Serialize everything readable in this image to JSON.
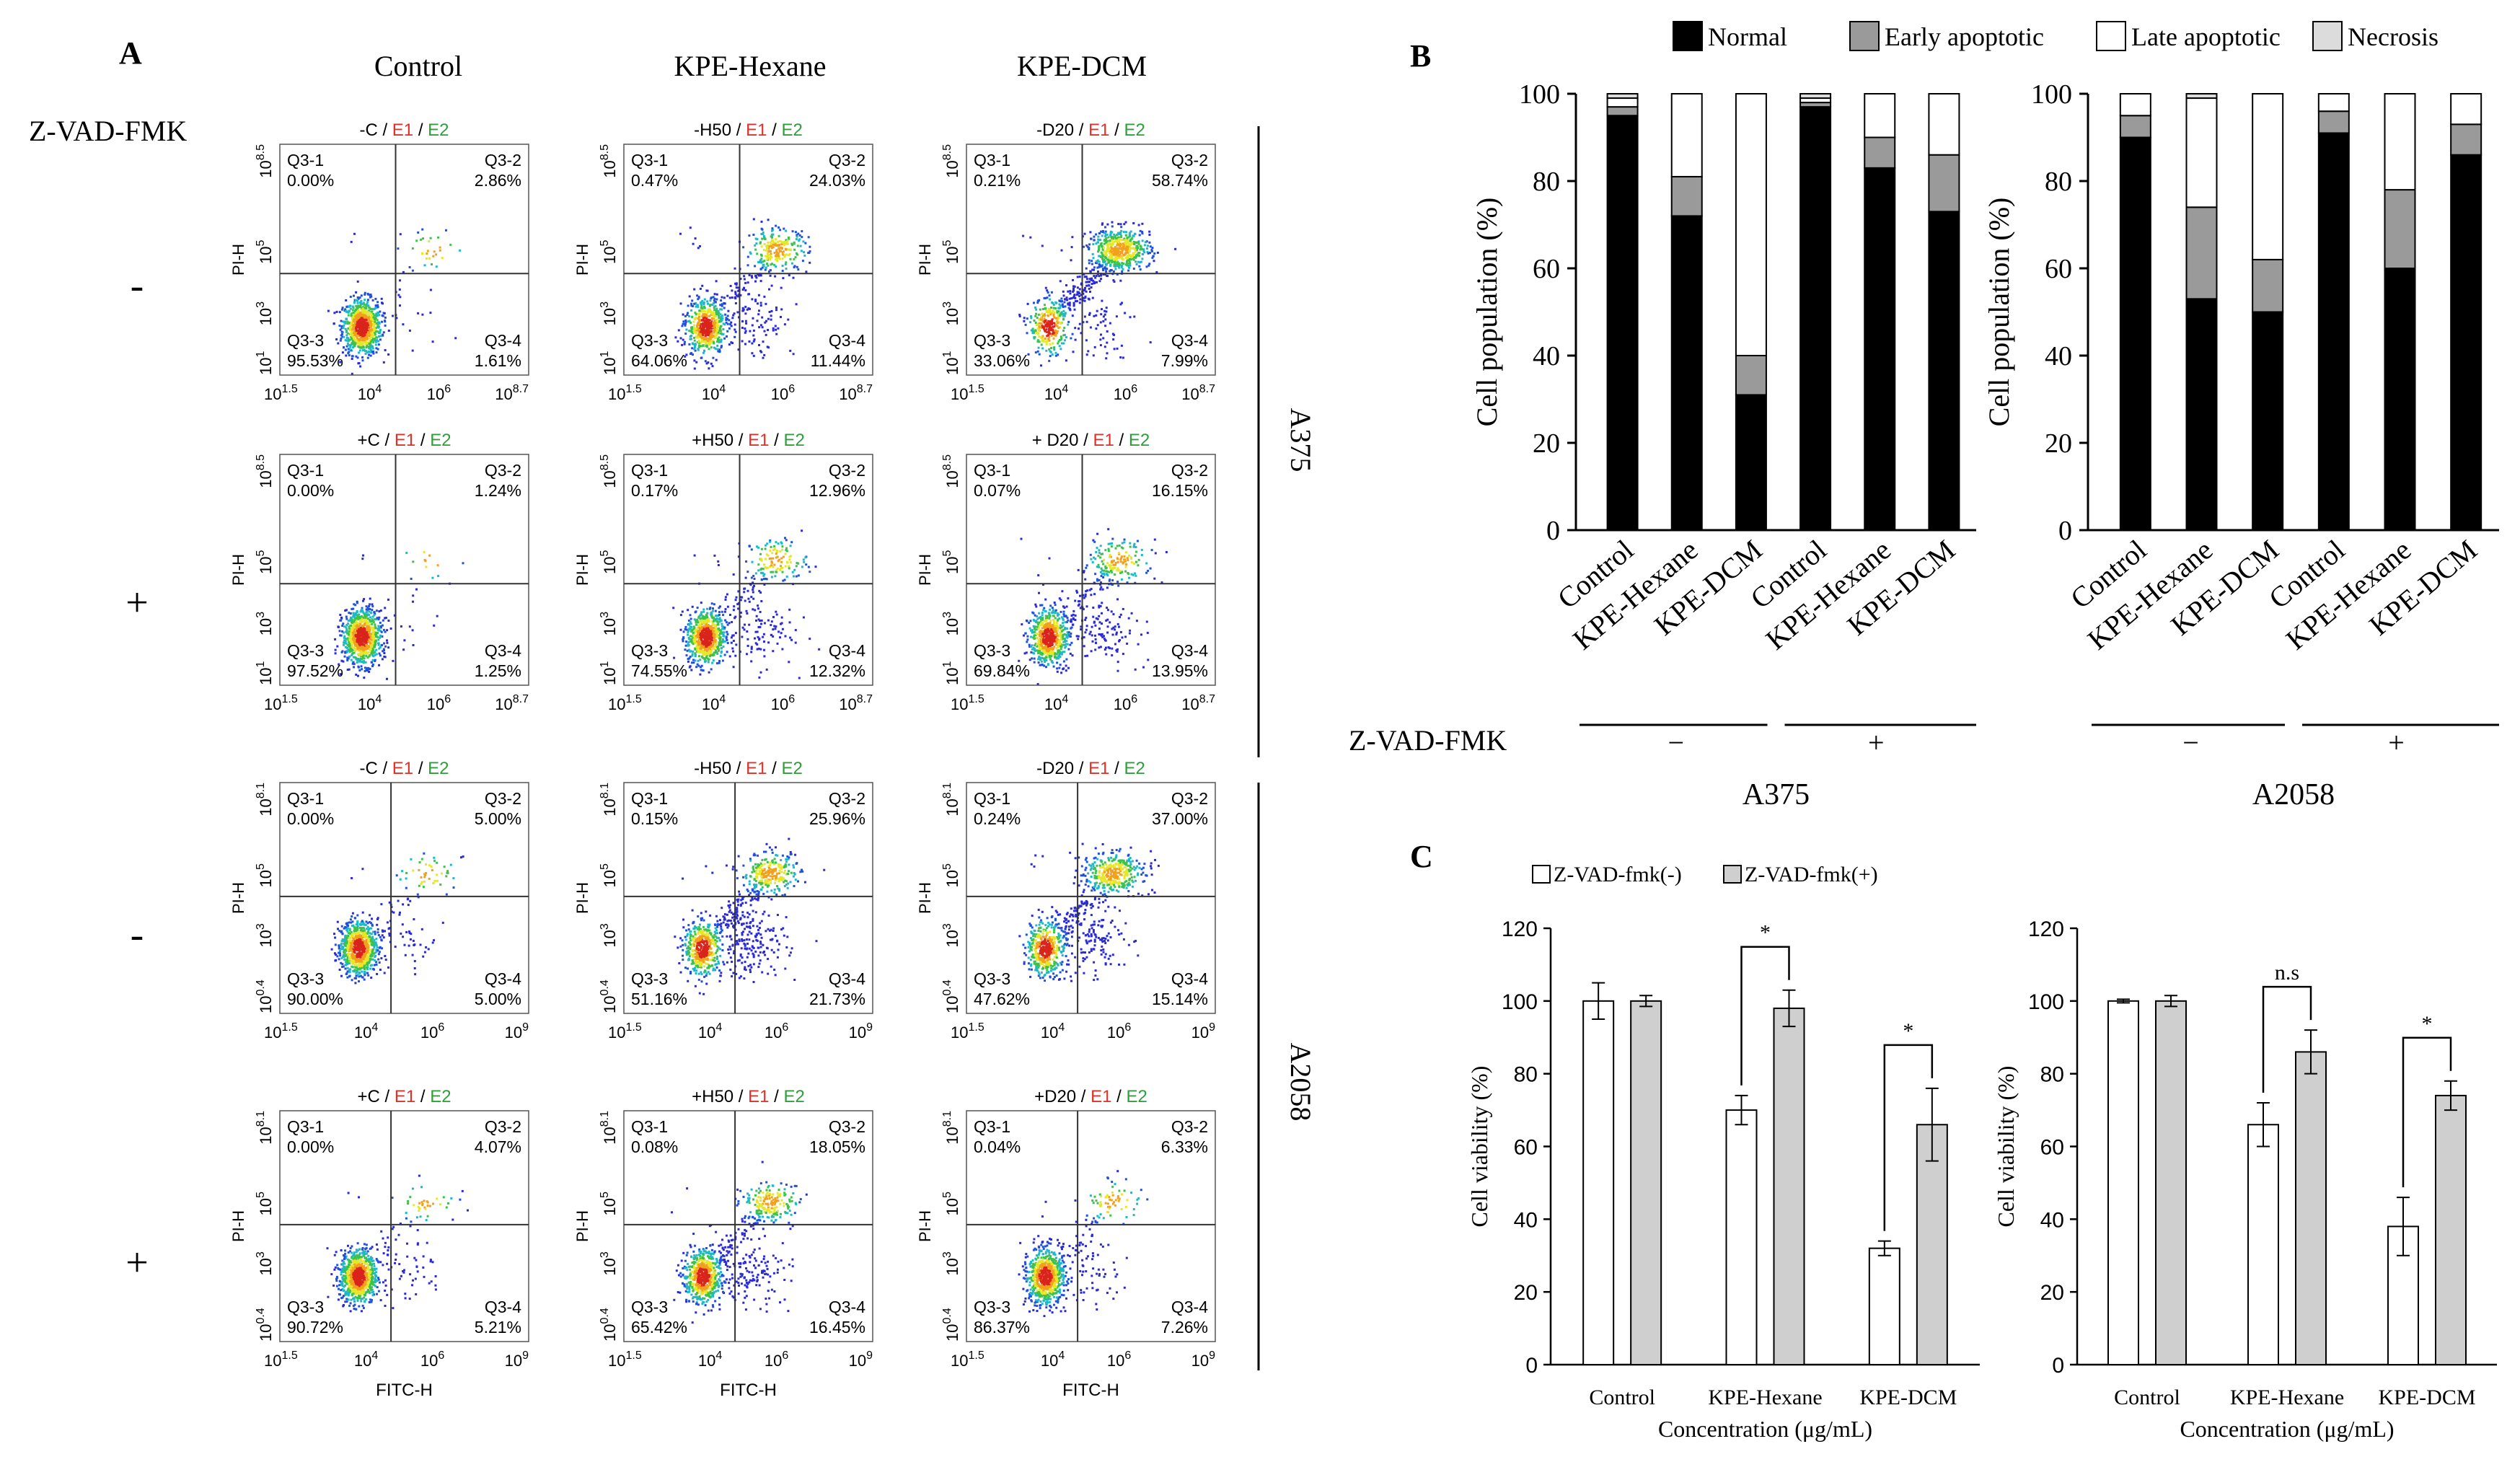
{
  "figure": {
    "panel_labels": {
      "a": "A",
      "b": "B",
      "c": "C"
    }
  },
  "panel_a": {
    "column_headers": [
      "Control",
      "KPE-Hexane",
      "KPE-DCM"
    ],
    "row_header": "Z-VAD-FMK",
    "row_signs": [
      "-",
      "+",
      "-",
      "+"
    ],
    "cell_lines": [
      "A375",
      "A2058"
    ],
    "x_axis_label": "FITC-H",
    "y_axis_label": "PI-H",
    "tag_colors": {
      "e1": "#e0302a",
      "e2": "#2f9e3a"
    },
    "plots": [
      [
        {
          "tag_prefix": "-C",
          "e1": "E1",
          "e2": "E2",
          "q1": "Q3-1",
          "q1v": "0.00%",
          "q2": "Q3-2",
          "q2v": "2.86%",
          "q3": "Q3-3",
          "q3v": "95.53%",
          "q4": "Q3-4",
          "q4v": "1.61%",
          "x_ticks": [
            "10^1.5",
            "10^4",
            "10^6",
            "10^8.7"
          ],
          "y_ticks": [
            "10^8.5",
            "10^5",
            "10^3",
            "10^1"
          ],
          "x_max_exp": 8.7,
          "y_max_exp": 8.5,
          "y_min_exp": 1.0
        },
        {
          "tag_prefix": "-H50",
          "e1": "E1",
          "e2": "E2",
          "q1": "Q3-1",
          "q1v": "0.47%",
          "q2": "Q3-2",
          "q2v": "24.03%",
          "q3": "Q3-3",
          "q3v": "64.06%",
          "q4": "Q3-4",
          "q4v": "11.44%",
          "x_ticks": [
            "10^1.5",
            "10^4",
            "10^6",
            "10^8.7"
          ],
          "y_ticks": [
            "10^8.5",
            "10^5",
            "10^3",
            "10^1"
          ],
          "x_max_exp": 8.7,
          "y_max_exp": 8.5,
          "y_min_exp": 1.0
        },
        {
          "tag_prefix": "-D20",
          "e1": "E1",
          "e2": "E2",
          "q1": "Q3-1",
          "q1v": "0.21%",
          "q2": "Q3-2",
          "q2v": "58.74%",
          "q3": "Q3-3",
          "q3v": "33.06%",
          "q4": "Q3-4",
          "q4v": "7.99%",
          "x_ticks": [
            "10^1.5",
            "10^4",
            "10^6",
            "10^8.7"
          ],
          "y_ticks": [
            "10^8.5",
            "10^5",
            "10^3",
            "10^1"
          ],
          "x_max_exp": 8.7,
          "y_max_exp": 8.5,
          "y_min_exp": 1.0
        }
      ],
      [
        {
          "tag_prefix": "+C",
          "e1": "E1",
          "e2": "E2",
          "q1": "Q3-1",
          "q1v": "0.00%",
          "q2": "Q3-2",
          "q2v": "1.24%",
          "q3": "Q3-3",
          "q3v": "97.52%",
          "q4": "Q3-4",
          "q4v": "1.25%",
          "x_ticks": [
            "10^1.5",
            "10^4",
            "10^6",
            "10^8.7"
          ],
          "y_ticks": [
            "10^8.5",
            "10^5",
            "10^3",
            "10^1"
          ],
          "x_max_exp": 8.7,
          "y_max_exp": 8.5,
          "y_min_exp": 1.0
        },
        {
          "tag_prefix": "+H50",
          "e1": "E1",
          "e2": "E2",
          "q1": "Q3-1",
          "q1v": "0.17%",
          "q2": "Q3-2",
          "q2v": "12.96%",
          "q3": "Q3-3",
          "q3v": "74.55%",
          "q4": "Q3-4",
          "q4v": "12.32%",
          "x_ticks": [
            "10^1.5",
            "10^4",
            "10^6",
            "10^8.7"
          ],
          "y_ticks": [
            "10^8.5",
            "10^5",
            "10^3",
            "10^1"
          ],
          "x_max_exp": 8.7,
          "y_max_exp": 8.5,
          "y_min_exp": 1.0
        },
        {
          "tag_prefix": "+ D20",
          "e1": "E1",
          "e2": "E2",
          "q1": "Q3-1",
          "q1v": "0.07%",
          "q2": "Q3-2",
          "q2v": "16.15%",
          "q3": "Q3-3",
          "q3v": "69.84%",
          "q4": "Q3-4",
          "q4v": "13.95%",
          "x_ticks": [
            "10^1.5",
            "10^4",
            "10^6",
            "10^8.7"
          ],
          "y_ticks": [
            "10^8.5",
            "10^5",
            "10^3",
            "10^1"
          ],
          "x_max_exp": 8.7,
          "y_max_exp": 8.5,
          "y_min_exp": 1.0
        }
      ],
      [
        {
          "tag_prefix": "-C",
          "e1": "E1",
          "e2": "E2",
          "q1": "Q3-1",
          "q1v": "0.00%",
          "q2": "Q3-2",
          "q2v": "5.00%",
          "q3": "Q3-3",
          "q3v": "90.00%",
          "q4": "Q3-4",
          "q4v": "5.00%",
          "x_ticks": [
            "10^1.5",
            "10^4",
            "10^6",
            "10^9"
          ],
          "y_ticks": [
            "10^8.1",
            "10^5",
            "10^3",
            "10^0.4"
          ],
          "x_max_exp": 9.0,
          "y_max_exp": 8.1,
          "y_min_exp": 0.4
        },
        {
          "tag_prefix": "-H50",
          "e1": "E1",
          "e2": "E2",
          "q1": "Q3-1",
          "q1v": "0.15%",
          "q2": "Q3-2",
          "q2v": "25.96%",
          "q3": "Q3-3",
          "q3v": "51.16%",
          "q4": "Q3-4",
          "q4v": "21.73%",
          "x_ticks": [
            "10^1.5",
            "10^4",
            "10^6",
            "10^9"
          ],
          "y_ticks": [
            "10^8.1",
            "10^5",
            "10^3",
            "10^0.4"
          ],
          "x_max_exp": 9.0,
          "y_max_exp": 8.1,
          "y_min_exp": 0.4
        },
        {
          "tag_prefix": "-D20",
          "e1": "E1",
          "e2": "E2",
          "q1": "Q3-1",
          "q1v": "0.24%",
          "q2": "Q3-2",
          "q2v": "37.00%",
          "q3": "Q3-3",
          "q3v": "47.62%",
          "q4": "Q3-4",
          "q4v": "15.14%",
          "x_ticks": [
            "10^1.5",
            "10^4",
            "10^6",
            "10^9"
          ],
          "y_ticks": [
            "10^8.1",
            "10^5",
            "10^3",
            "10^0.4"
          ],
          "x_max_exp": 9.0,
          "y_max_exp": 8.1,
          "y_min_exp": 0.4
        }
      ],
      [
        {
          "tag_prefix": "+C",
          "e1": "E1",
          "e2": "E2",
          "q1": "Q3-1",
          "q1v": "0.00%",
          "q2": "Q3-2",
          "q2v": "4.07%",
          "q3": "Q3-3",
          "q3v": "90.72%",
          "q4": "Q3-4",
          "q4v": "5.21%",
          "x_ticks": [
            "10^1.5",
            "10^4",
            "10^6",
            "10^9"
          ],
          "y_ticks": [
            "10^8.1",
            "10^5",
            "10^3",
            "10^0.4"
          ],
          "x_max_exp": 9.0,
          "y_max_exp": 8.1,
          "y_min_exp": 0.4
        },
        {
          "tag_prefix": "+H50",
          "e1": "E1",
          "e2": "E2",
          "q1": "Q3-1",
          "q1v": "0.08%",
          "q2": "Q3-2",
          "q2v": "18.05%",
          "q3": "Q3-3",
          "q3v": "65.42%",
          "q4": "Q3-4",
          "q4v": "16.45%",
          "x_ticks": [
            "10^1.5",
            "10^4",
            "10^6",
            "10^9"
          ],
          "y_ticks": [
            "10^8.1",
            "10^5",
            "10^3",
            "10^0.4"
          ],
          "x_max_exp": 9.0,
          "y_max_exp": 8.1,
          "y_min_exp": 0.4
        },
        {
          "tag_prefix": "+D20",
          "e1": "E1",
          "e2": "E2",
          "q1": "Q3-1",
          "q1v": "0.04%",
          "q2": "Q3-2",
          "q2v": "6.33%",
          "q3": "Q3-3",
          "q3v": "86.37%",
          "q4": "Q3-4",
          "q4v": "7.26%",
          "x_ticks": [
            "10^1.5",
            "10^4",
            "10^6",
            "10^9"
          ],
          "y_ticks": [
            "10^8.1",
            "10^5",
            "10^3",
            "10^0.4"
          ],
          "x_max_exp": 9.0,
          "y_max_exp": 8.1,
          "y_min_exp": 0.4
        }
      ]
    ]
  },
  "panel_b": {
    "legend": [
      {
        "name": "Normal",
        "color": "#000000"
      },
      {
        "name": "Early apoptotic",
        "color": "#9a9a9a"
      },
      {
        "name": "Late apoptotic",
        "color": "#ffffff"
      },
      {
        "name": "Necrosis",
        "color": "#dcdcdc"
      }
    ],
    "ylabel": "Cell population (%)",
    "y_ticks": [
      "0",
      "20",
      "40",
      "60",
      "80",
      "100"
    ],
    "zvad_label": "Z-VAD-FMK",
    "zvad_signs": [
      "−",
      "+"
    ]
  },
  "panel_c": {
    "legend": [
      {
        "name": "Z-VAD-fmk(-)",
        "color": "#ffffff"
      },
      {
        "name": "Z-VAD-fmk(+)",
        "color": "#cfcfcf"
      }
    ],
    "ylabel": "Cell viability (%)",
    "xlabel": "Concentration (μg/mL)",
    "y_ticks": [
      "0",
      "20",
      "40",
      "60",
      "80",
      "100",
      "120"
    ],
    "categories": [
      "Control",
      "KPE-Hexane",
      "KPE-DCM"
    ]
  },
  "chart_data": [
    {
      "type": "bar",
      "stacked": true,
      "title": "A375",
      "categories": [
        "Control",
        "KPE-Hexane",
        "KPE-DCM",
        "Control",
        "KPE-Hexane",
        "KPE-DCM"
      ],
      "groups": [
        "−",
        "−",
        "−",
        "+",
        "+",
        "+"
      ],
      "ylabel": "Cell population (%)",
      "ylim": [
        0,
        100
      ],
      "series": [
        {
          "name": "Normal",
          "values": [
            95,
            72,
            31,
            97,
            83,
            73
          ]
        },
        {
          "name": "Early apoptotic",
          "values": [
            2,
            9,
            9,
            1,
            7,
            13
          ]
        },
        {
          "name": "Late apoptotic",
          "values": [
            2,
            19,
            60,
            1,
            10,
            14
          ]
        },
        {
          "name": "Necrosis",
          "values": [
            1,
            0,
            0,
            1,
            0,
            0
          ]
        }
      ]
    },
    {
      "type": "bar",
      "stacked": true,
      "title": "A2058",
      "categories": [
        "Control",
        "KPE-Hexane",
        "KPE-DCM",
        "Control",
        "KPE-Hexane",
        "KPE-DCM"
      ],
      "groups": [
        "−",
        "−",
        "−",
        "+",
        "+",
        "+"
      ],
      "ylabel": "Cell population (%)",
      "ylim": [
        0,
        100
      ],
      "series": [
        {
          "name": "Normal",
          "values": [
            90,
            53,
            50,
            91,
            60,
            86
          ]
        },
        {
          "name": "Early apoptotic",
          "values": [
            5,
            21,
            12,
            5,
            18,
            7
          ]
        },
        {
          "name": "Late apoptotic",
          "values": [
            5,
            25,
            38,
            4,
            22,
            7
          ]
        },
        {
          "name": "Necrosis",
          "values": [
            0,
            1,
            0,
            0,
            0,
            0
          ]
        }
      ]
    },
    {
      "type": "bar",
      "title": "",
      "categories": [
        "Control",
        "KPE-Hexane",
        "KPE-DCM"
      ],
      "xlabel": "Concentration (μg/mL)",
      "ylabel": "Cell viability (%)",
      "ylim": [
        0,
        120
      ],
      "series": [
        {
          "name": "Z-VAD-fmk(-)",
          "values": [
            100,
            70,
            32
          ],
          "errors": [
            5,
            4,
            2
          ]
        },
        {
          "name": "Z-VAD-fmk(+)",
          "values": [
            100,
            98,
            66
          ],
          "errors": [
            1.5,
            5,
            10
          ]
        }
      ],
      "annotations": [
        {
          "category": "KPE-Hexane",
          "text": "*"
        },
        {
          "category": "KPE-DCM",
          "text": "*"
        }
      ]
    },
    {
      "type": "bar",
      "title": "",
      "categories": [
        "Control",
        "KPE-Hexane",
        "KPE-DCM"
      ],
      "xlabel": "Concentration (μg/mL)",
      "ylabel": "Cell viability (%)",
      "ylim": [
        0,
        120
      ],
      "series": [
        {
          "name": "Z-VAD-fmk(-)",
          "values": [
            100,
            66,
            38
          ],
          "errors": [
            0.5,
            6,
            8
          ]
        },
        {
          "name": "Z-VAD-fmk(+)",
          "values": [
            100,
            86,
            74
          ],
          "errors": [
            1.5,
            6,
            4
          ]
        }
      ],
      "annotations": [
        {
          "category": "KPE-Hexane",
          "text": "n.s"
        },
        {
          "category": "KPE-DCM",
          "text": "*"
        }
      ]
    }
  ]
}
